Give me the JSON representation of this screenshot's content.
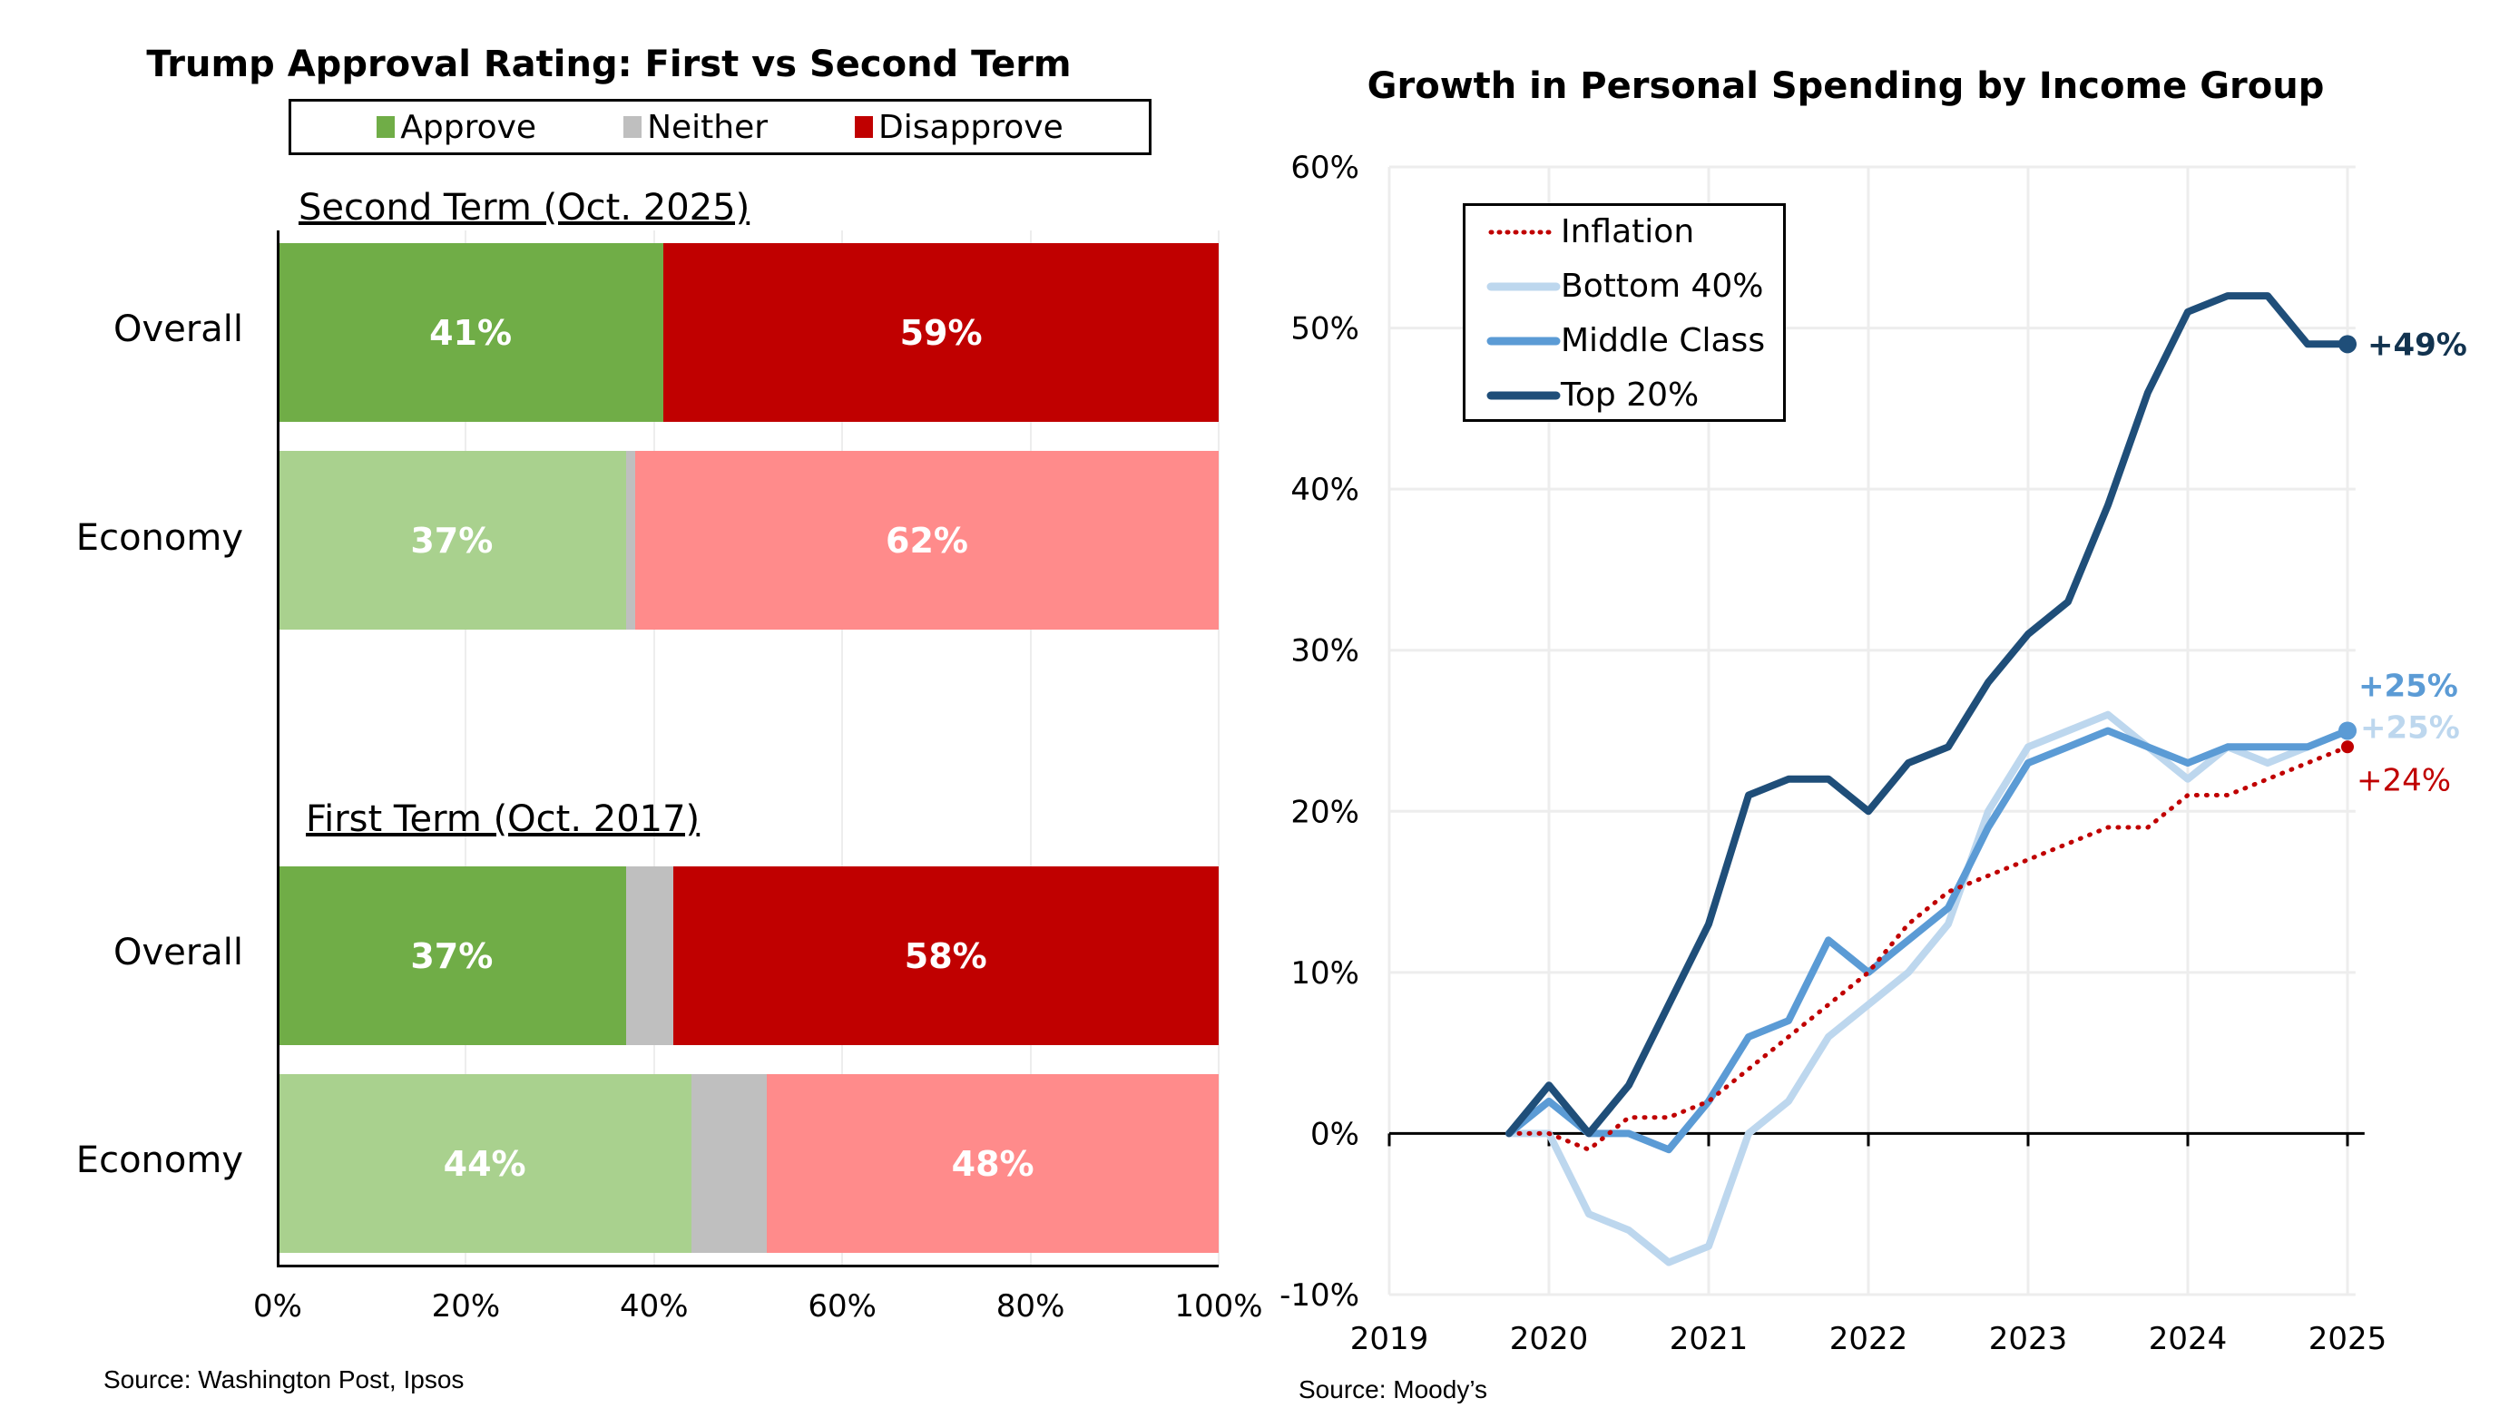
{
  "chart_data": [
    {
      "type": "bar",
      "orientation": "horizontal-stacked",
      "title": "Trump Approval Rating: First vs Second Term",
      "legend": {
        "position": "top",
        "entries": [
          "Approve",
          "Neither",
          "Disapprove"
        ]
      },
      "colors": {
        "approve": "#70AD47",
        "approve_light": "#A9D18E",
        "neither": "#BFBFBF",
        "disapprove": "#C00000",
        "disapprove_light": "#FF8B8B"
      },
      "groups": [
        {
          "label": "Second Term (Oct. 2025)",
          "rows": [
            {
              "category": "Overall",
              "shade": "dark",
              "approve": 41,
              "neither": 0,
              "disapprove": 59,
              "approve_label": "41%",
              "disapprove_label": "59%"
            },
            {
              "category": "Economy",
              "shade": "light",
              "approve": 37,
              "neither": 1,
              "disapprove": 62,
              "approve_label": "37%",
              "disapprove_label": "62%"
            }
          ]
        },
        {
          "label": "First Term (Oct. 2017)",
          "rows": [
            {
              "category": "Overall",
              "shade": "dark",
              "approve": 37,
              "neither": 5,
              "disapprove": 58,
              "approve_label": "37%",
              "disapprove_label": "58%"
            },
            {
              "category": "Economy",
              "shade": "light",
              "approve": 44,
              "neither": 8,
              "disapprove": 48,
              "approve_label": "44%",
              "disapprove_label": "48%"
            }
          ]
        }
      ],
      "xaxis": {
        "ticks": [
          "0%",
          "20%",
          "40%",
          "60%",
          "80%",
          "100%"
        ],
        "range": [
          0,
          100
        ]
      },
      "grid": true,
      "source": "Source: Washington Post, Ipsos"
    },
    {
      "type": "line",
      "title": "Growth in Personal Spending by Income Group",
      "ylim": [
        -10,
        60
      ],
      "xlim": [
        2019,
        2025
      ],
      "yticks": [
        "-10%",
        "0%",
        "10%",
        "20%",
        "30%",
        "40%",
        "50%",
        "60%"
      ],
      "ytick_values": [
        -10,
        0,
        10,
        20,
        30,
        40,
        50,
        60
      ],
      "xticks": [
        "2019",
        "2020",
        "2021",
        "2022",
        "2023",
        "2024",
        "2025"
      ],
      "xtick_values": [
        2019,
        2020,
        2021,
        2022,
        2023,
        2024,
        2025
      ],
      "grid": true,
      "legend": {
        "position": "top-left"
      },
      "x": [
        2019.75,
        2020.0,
        2020.25,
        2020.5,
        2020.75,
        2021.0,
        2021.25,
        2021.5,
        2021.75,
        2022.0,
        2022.25,
        2022.5,
        2022.75,
        2023.0,
        2023.25,
        2023.5,
        2023.75,
        2024.0,
        2024.25,
        2024.5,
        2024.75,
        2025.0
      ],
      "series": [
        {
          "name": "Inflation",
          "color": "#C00000",
          "style": "dotted",
          "values": [
            0,
            0,
            -1,
            1,
            1,
            2,
            4,
            6,
            8,
            10,
            13,
            15,
            16,
            17,
            18,
            19,
            19,
            21,
            21,
            22,
            23,
            24
          ],
          "end_label": "+24%"
        },
        {
          "name": "Bottom 40%",
          "color": "#BDD7EE",
          "style": "solid",
          "values": [
            0,
            0,
            -5,
            -6,
            -8,
            -7,
            0,
            2,
            6,
            8,
            10,
            13,
            20,
            24,
            25,
            26,
            24,
            22,
            24,
            23,
            24,
            25
          ],
          "end_label": "+25%"
        },
        {
          "name": "Middle Class",
          "color": "#5B9BD5",
          "style": "solid",
          "values": [
            0,
            2,
            0,
            0,
            -1,
            2,
            6,
            7,
            12,
            10,
            12,
            14,
            19,
            23,
            24,
            25,
            24,
            23,
            24,
            24,
            24,
            25
          ],
          "end_label": "+25%"
        },
        {
          "name": "Top 20%",
          "color": "#1F4E79",
          "style": "solid",
          "values": [
            0,
            3,
            0,
            3,
            8,
            13,
            21,
            22,
            22,
            20,
            23,
            24,
            28,
            31,
            33,
            39,
            46,
            51,
            52,
            52,
            49,
            49
          ],
          "end_label": "+49%"
        }
      ],
      "end_label_colors": {
        "Top 20%": "#12334F",
        "Middle Class": "#5B9BD5",
        "Bottom 40%": "#BDD7EE",
        "Inflation": "#C00000"
      },
      "source": "Source: Moody’s"
    }
  ]
}
